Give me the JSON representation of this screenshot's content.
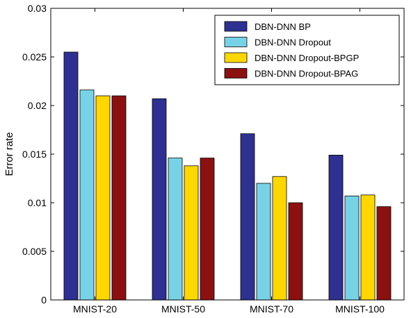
{
  "chart_data": {
    "type": "bar",
    "ylabel": "Error rate",
    "ylim": [
      0,
      0.03
    ],
    "yticks": [
      "0",
      "0.005",
      "0.01",
      "0.015",
      "0.02",
      "0.025",
      "0.03"
    ],
    "categories": [
      "MNIST-20",
      "MNIST-50",
      "MNIST-70",
      "MNIST-100"
    ],
    "series": [
      {
        "name": "DBN-DNN BP",
        "color": "#2e3192",
        "values": [
          0.0255,
          0.0207,
          0.0171,
          0.0149
        ]
      },
      {
        "name": "DBN-DNN Dropout",
        "color": "#78d2e6",
        "values": [
          0.0216,
          0.0146,
          0.012,
          0.0107
        ]
      },
      {
        "name": "DBN-DNN Dropout-BPGP",
        "color": "#ffd700",
        "values": [
          0.021,
          0.0138,
          0.0127,
          0.0108
        ]
      },
      {
        "name": "DBN-DNN Dropout-BPAG",
        "color": "#8b1111",
        "values": [
          0.021,
          0.0146,
          0.01,
          0.0096
        ]
      }
    ],
    "legend_position": "top-right",
    "grid": false
  }
}
